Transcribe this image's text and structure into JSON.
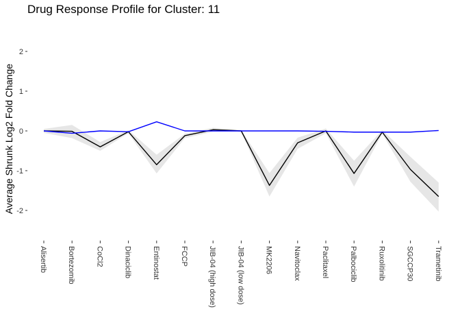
{
  "chart_data": {
    "type": "line",
    "title": "Drug Response Profile for Cluster:  11",
    "xlabel": "",
    "ylabel": "Average Shrunk Log2 Fold Change",
    "ylim": [
      -2.5,
      2.2
    ],
    "yticks": [
      2,
      1,
      0,
      -1,
      -2
    ],
    "ytick_labels": [
      "2",
      "1",
      "0",
      "-1",
      "-2"
    ],
    "grid": false,
    "legend": "none",
    "categories": [
      "Alisertib",
      "Bortezomib",
      "CoCl2",
      "Dinaciclib",
      "Entinostat",
      "FCCP",
      "JIB-04 (high dose)",
      "JIB-04 (low dose)",
      "MK2206",
      "Navitoclax",
      "Paclitaxel",
      "Palbociclib",
      "Ruxolitinib",
      "SGCCP30",
      "Trametinib"
    ],
    "series": [
      {
        "color": "#000000",
        "values": [
          0.0,
          -0.01,
          -0.4,
          -0.02,
          -0.85,
          -0.12,
          0.03,
          0.0,
          -1.37,
          -0.3,
          0.0,
          -1.07,
          -0.03,
          -0.97,
          -1.65
        ],
        "band_lower": [
          -0.05,
          -0.18,
          -0.5,
          -0.06,
          -1.07,
          -0.18,
          -0.02,
          -0.02,
          -1.65,
          -0.45,
          -0.06,
          -1.4,
          -0.07,
          -1.28,
          -2.03
        ],
        "band_upper": [
          0.05,
          0.15,
          -0.28,
          0.02,
          -0.6,
          -0.07,
          0.08,
          0.02,
          -1.06,
          -0.17,
          0.06,
          -0.75,
          0.02,
          -0.65,
          -1.3
        ]
      },
      {
        "color": "#0000ff",
        "values": [
          0.0,
          -0.06,
          0.0,
          -0.02,
          0.23,
          0.0,
          0.0,
          0.0,
          0.0,
          0.0,
          -0.01,
          -0.03,
          -0.03,
          -0.03,
          0.01
        ]
      }
    ],
    "colors": {
      "band": "#e6e6e6",
      "axis": "#333333"
    }
  }
}
